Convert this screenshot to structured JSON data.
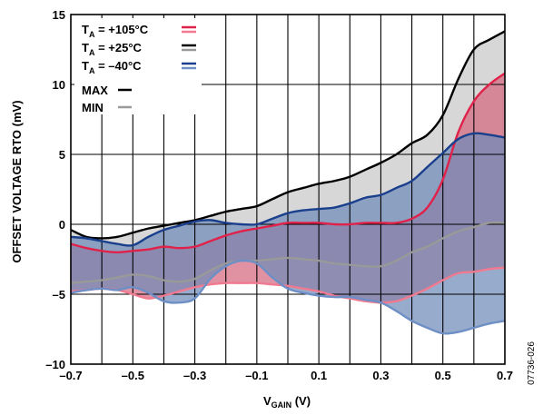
{
  "chart_data": {
    "type": "area",
    "xlabel_main": "V",
    "xlabel_sub": "GAIN",
    "xlabel_unit": " (V)",
    "ylabel": "OFFSET VOLTAGE RTO (mV)",
    "xlim": [
      -0.7,
      0.7
    ],
    "ylim": [
      -10,
      15
    ],
    "xticks": [
      -0.7,
      -0.5,
      -0.3,
      -0.1,
      0.1,
      0.3,
      0.5,
      0.7
    ],
    "xtick_labels": [
      "–0.7",
      "–0.5",
      "–0.3",
      "–0.1",
      "0.1",
      "0.3",
      "0.5",
      "0.7"
    ],
    "yticks": [
      -10,
      -5,
      0,
      5,
      10,
      15
    ],
    "ytick_labels": [
      "–10",
      "–5",
      "0",
      "5",
      "10",
      "15"
    ],
    "x_minor_step": 0.1,
    "grid": true,
    "figure_id": "07736-026",
    "legend": {
      "placement": "top-left",
      "temp_entries": [
        {
          "prefix": "T",
          "sub": "A",
          "value": " = +105°C",
          "max_color": "#e0224a",
          "min_color": "#f07a90"
        },
        {
          "prefix": "T",
          "sub": "A",
          "value": " = +25°C",
          "max_color": "#000000",
          "min_color": "#999999"
        },
        {
          "prefix": "T",
          "sub": "A",
          "value": " = –40°C",
          "max_color": "#1a3f8c",
          "min_color": "#6d8fc6"
        }
      ],
      "max_label": "MAX",
      "min_label": "MIN",
      "max_color": "#000000",
      "min_color": "#999999"
    },
    "series": [
      {
        "name": "T_A = +25°C",
        "band_fill": "#c8c8c8",
        "max_color": "#000000",
        "min_color": "#999999",
        "max": {
          "x": [
            -0.7,
            -0.65,
            -0.6,
            -0.55,
            -0.5,
            -0.45,
            -0.4,
            -0.35,
            -0.3,
            -0.25,
            -0.2,
            -0.15,
            -0.1,
            -0.05,
            0.0,
            0.05,
            0.1,
            0.15,
            0.2,
            0.25,
            0.3,
            0.35,
            0.4,
            0.45,
            0.5,
            0.55,
            0.6,
            0.65,
            0.7
          ],
          "y": [
            -0.4,
            -0.9,
            -1.0,
            -0.9,
            -0.6,
            -0.3,
            -0.1,
            0.1,
            0.3,
            0.6,
            0.9,
            1.1,
            1.3,
            1.8,
            2.3,
            2.6,
            2.9,
            3.1,
            3.4,
            3.9,
            4.4,
            5.0,
            5.8,
            6.4,
            7.8,
            10.4,
            12.5,
            13.2,
            13.8
          ]
        },
        "min": {
          "x": [
            -0.7,
            -0.65,
            -0.6,
            -0.55,
            -0.5,
            -0.45,
            -0.4,
            -0.35,
            -0.3,
            -0.25,
            -0.2,
            -0.15,
            -0.1,
            -0.05,
            0.0,
            0.05,
            0.1,
            0.15,
            0.2,
            0.25,
            0.3,
            0.35,
            0.4,
            0.45,
            0.5,
            0.55,
            0.6,
            0.65,
            0.7
          ],
          "y": [
            -4.2,
            -4.1,
            -4.0,
            -3.8,
            -3.6,
            -3.7,
            -4.0,
            -4.1,
            -3.9,
            -3.3,
            -2.8,
            -2.6,
            -2.6,
            -2.5,
            -2.4,
            -2.5,
            -2.6,
            -2.8,
            -2.9,
            -3.0,
            -3.0,
            -2.6,
            -2.0,
            -1.6,
            -1.0,
            -0.5,
            -0.2,
            0.1,
            0.1
          ]
        }
      },
      {
        "name": "T_A = +105°C",
        "band_fill": "#d4687f",
        "max_color": "#e0224a",
        "min_color": "#f07a90",
        "max": {
          "x": [
            -0.7,
            -0.65,
            -0.6,
            -0.55,
            -0.5,
            -0.45,
            -0.4,
            -0.35,
            -0.3,
            -0.25,
            -0.2,
            -0.15,
            -0.1,
            -0.05,
            0.0,
            0.05,
            0.1,
            0.15,
            0.2,
            0.25,
            0.3,
            0.35,
            0.4,
            0.45,
            0.5,
            0.55,
            0.6,
            0.65,
            0.7
          ],
          "y": [
            -1.4,
            -1.7,
            -1.9,
            -2.0,
            -1.9,
            -1.8,
            -1.6,
            -1.7,
            -1.6,
            -1.2,
            -0.8,
            -0.5,
            -0.3,
            -0.1,
            0.1,
            0.1,
            0.1,
            0.0,
            0.0,
            0.1,
            0.1,
            0.1,
            0.4,
            1.2,
            3.2,
            6.6,
            8.8,
            10.0,
            10.8
          ]
        },
        "min": {
          "x": [
            -0.7,
            -0.65,
            -0.6,
            -0.55,
            -0.5,
            -0.45,
            -0.4,
            -0.35,
            -0.3,
            -0.25,
            -0.2,
            -0.15,
            -0.1,
            -0.05,
            0.0,
            0.05,
            0.1,
            0.15,
            0.2,
            0.25,
            0.3,
            0.35,
            0.4,
            0.45,
            0.5,
            0.55,
            0.6,
            0.65,
            0.7
          ],
          "y": [
            -4.8,
            -4.7,
            -4.6,
            -4.7,
            -5.0,
            -5.3,
            -5.1,
            -4.8,
            -4.5,
            -4.3,
            -4.2,
            -4.2,
            -4.2,
            -4.3,
            -4.4,
            -4.6,
            -4.8,
            -5.1,
            -5.3,
            -5.5,
            -5.6,
            -5.5,
            -5.1,
            -4.6,
            -4.0,
            -3.5,
            -3.4,
            -3.2,
            -3.1
          ]
        }
      },
      {
        "name": "T_A = –40°C",
        "band_fill": "#6f8ab8",
        "max_color": "#1a3f8c",
        "min_color": "#6d8fc6",
        "max": {
          "x": [
            -0.7,
            -0.65,
            -0.6,
            -0.55,
            -0.5,
            -0.45,
            -0.4,
            -0.35,
            -0.3,
            -0.25,
            -0.2,
            -0.15,
            -0.1,
            -0.05,
            0.0,
            0.05,
            0.1,
            0.15,
            0.2,
            0.25,
            0.3,
            0.35,
            0.4,
            0.45,
            0.5,
            0.55,
            0.6,
            0.65,
            0.7
          ],
          "y": [
            -0.9,
            -1.0,
            -1.2,
            -1.4,
            -1.5,
            -0.9,
            -0.4,
            -0.1,
            0.2,
            0.3,
            0.1,
            0.0,
            0.0,
            0.4,
            0.8,
            1.0,
            1.1,
            1.2,
            1.5,
            1.9,
            2.1,
            2.6,
            3.1,
            4.1,
            5.1,
            6.1,
            6.5,
            6.4,
            6.2
          ]
        },
        "min": {
          "x": [
            -0.7,
            -0.65,
            -0.6,
            -0.55,
            -0.5,
            -0.45,
            -0.4,
            -0.35,
            -0.3,
            -0.25,
            -0.2,
            -0.15,
            -0.1,
            -0.05,
            0.0,
            0.05,
            0.1,
            0.15,
            0.2,
            0.25,
            0.3,
            0.35,
            0.4,
            0.45,
            0.5,
            0.55,
            0.6,
            0.65,
            0.7
          ],
          "y": [
            -4.9,
            -4.7,
            -4.6,
            -4.7,
            -4.5,
            -4.9,
            -5.5,
            -5.6,
            -5.3,
            -3.9,
            -3.0,
            -2.6,
            -2.8,
            -3.8,
            -4.6,
            -4.9,
            -5.1,
            -5.2,
            -5.2,
            -5.4,
            -5.6,
            -6.2,
            -6.9,
            -7.4,
            -7.8,
            -7.7,
            -7.4,
            -7.1,
            -6.9
          ]
        }
      }
    ]
  }
}
